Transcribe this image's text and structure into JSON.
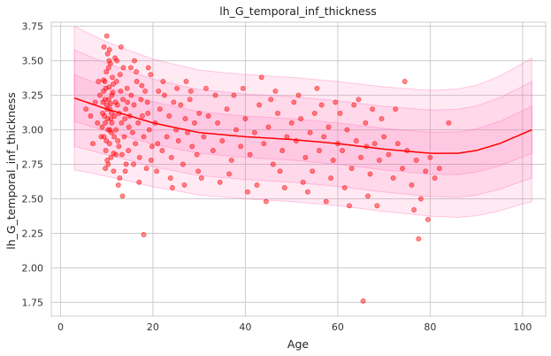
{
  "chart_data": {
    "type": "scatter",
    "title": "lh_G_temporal_inf_thickness",
    "xlabel": "Age",
    "ylabel": "lh_G_temporal_inf_thickness",
    "xlim": [
      -2,
      105
    ],
    "ylim": [
      1.65,
      3.78
    ],
    "x_ticks": [
      0,
      20,
      40,
      60,
      80,
      100
    ],
    "y_ticks": [
      1.75,
      2.0,
      2.25,
      2.5,
      2.75,
      3.0,
      3.25,
      3.5,
      3.75
    ],
    "x_tick_labels": [
      "0",
      "20",
      "40",
      "60",
      "80",
      "100"
    ],
    "y_tick_labels": [
      "1.75",
      "2.00",
      "2.25",
      "2.50",
      "2.75",
      "3.00",
      "3.25",
      "3.50",
      "3.75"
    ],
    "grid": true,
    "point_color": "#ff0000",
    "trend_color": "#ff0000",
    "band_color": "#ff69b4",
    "trend": {
      "x": [
        3,
        10,
        20,
        30,
        40,
        50,
        60,
        70,
        80,
        86,
        90,
        95,
        102
      ],
      "y": [
        3.23,
        3.15,
        3.05,
        2.98,
        2.95,
        2.93,
        2.9,
        2.86,
        2.83,
        2.83,
        2.85,
        2.9,
        3.0
      ]
    },
    "bands": [
      {
        "name": "",
        "upper_offset": 0.45,
        "lower_offset": 0.45,
        "edge_widen": 0.07
      },
      {
        "name": "",
        "upper_offset": 0.31,
        "lower_offset": 0.31,
        "edge_widen": 0.04
      },
      {
        "name": "",
        "upper_offset": 0.15,
        "lower_offset": 0.15,
        "edge_widen": 0.02
      }
    ],
    "points": [
      [
        9.1,
        3.12
      ],
      [
        9.3,
        3.28
      ],
      [
        9.4,
        2.95
      ],
      [
        9.6,
        3.35
      ],
      [
        9.7,
        3.05
      ],
      [
        9.8,
        2.85
      ],
      [
        9.9,
        3.42
      ],
      [
        10.0,
        3.18
      ],
      [
        10.1,
        2.78
      ],
      [
        10.2,
        3.55
      ],
      [
        10.3,
        3.0
      ],
      [
        10.4,
        3.22
      ],
      [
        10.5,
        3.31
      ],
      [
        10.6,
        2.9
      ],
      [
        10.7,
        3.15
      ],
      [
        10.8,
        3.48
      ],
      [
        10.9,
        3.08
      ],
      [
        11.0,
        2.98
      ],
      [
        11.1,
        3.25
      ],
      [
        11.2,
        3.38
      ],
      [
        9.2,
        3.2
      ],
      [
        9.5,
        3.1
      ],
      [
        9.8,
        3.3
      ],
      [
        10.1,
        3.15
      ],
      [
        10.4,
        3.45
      ],
      [
        10.7,
        3.0
      ],
      [
        11.0,
        3.12
      ],
      [
        11.3,
        3.27
      ],
      [
        11.6,
        2.95
      ],
      [
        11.9,
        3.2
      ],
      [
        9.0,
        3.02
      ],
      [
        9.3,
        3.36
      ],
      [
        9.6,
        3.22
      ],
      [
        9.9,
        2.92
      ],
      [
        10.2,
        3.08
      ],
      [
        10.5,
        3.5
      ],
      [
        10.8,
        3.19
      ],
      [
        11.1,
        3.05
      ],
      [
        11.4,
        3.33
      ],
      [
        11.7,
        3.1
      ],
      [
        9.4,
        3.6
      ],
      [
        10.0,
        3.68
      ],
      [
        10.6,
        3.58
      ],
      [
        9.7,
        2.72
      ],
      [
        10.3,
        2.75
      ],
      [
        10.9,
        2.8
      ],
      [
        11.5,
        2.83
      ],
      [
        12.0,
        3.0
      ],
      [
        12.3,
        3.18
      ],
      [
        12.6,
        2.88
      ],
      [
        12.9,
        3.4
      ],
      [
        13.2,
        3.05
      ],
      [
        13.5,
        3.22
      ],
      [
        13.8,
        2.95
      ],
      [
        14.1,
        3.15
      ],
      [
        14.4,
        3.3
      ],
      [
        14.7,
        2.85
      ],
      [
        15.0,
        3.1
      ],
      [
        15.3,
        3.25
      ],
      [
        15.6,
        2.98
      ],
      [
        12.1,
        3.35
      ],
      [
        12.4,
        2.92
      ],
      [
        12.7,
        3.12
      ],
      [
        13.0,
        3.28
      ],
      [
        13.3,
        2.82
      ],
      [
        13.6,
        3.45
      ],
      [
        13.9,
        3.08
      ],
      [
        14.2,
        2.75
      ],
      [
        14.5,
        3.2
      ],
      [
        14.8,
        3.02
      ],
      [
        12.2,
        3.5
      ],
      [
        12.8,
        2.65
      ],
      [
        13.4,
        2.52
      ],
      [
        12.5,
        2.6
      ],
      [
        15.9,
        3.18
      ],
      [
        16.2,
        2.9
      ],
      [
        16.5,
        3.35
      ],
      [
        16.8,
        3.05
      ],
      [
        17.1,
        2.8
      ],
      [
        17.4,
        3.22
      ],
      [
        17.7,
        3.1
      ],
      [
        18.0,
        2.95
      ],
      [
        18.3,
        3.28
      ],
      [
        18.6,
        2.72
      ],
      [
        18.9,
        3.12
      ],
      [
        19.2,
        3.0
      ],
      [
        19.5,
        3.4
      ],
      [
        19.8,
        2.88
      ],
      [
        16.0,
        3.5
      ],
      [
        17.0,
        2.62
      ],
      [
        18.0,
        2.24
      ],
      [
        16.4,
        3.42
      ],
      [
        17.6,
        3.32
      ],
      [
        18.8,
        3.2
      ],
      [
        19.6,
        2.78
      ],
      [
        20.5,
        3.05
      ],
      [
        21.0,
        2.9
      ],
      [
        21.5,
        3.15
      ],
      [
        22.0,
        2.85
      ],
      [
        22.5,
        3.25
      ],
      [
        23.0,
        2.95
      ],
      [
        23.5,
        3.1
      ],
      [
        24.0,
        2.8
      ],
      [
        24.5,
        3.2
      ],
      [
        25.0,
        3.0
      ],
      [
        25.5,
        2.92
      ],
      [
        26.0,
        3.18
      ],
      [
        26.5,
        2.75
      ],
      [
        27.0,
        3.08
      ],
      [
        27.5,
        2.98
      ],
      [
        28.0,
        3.22
      ],
      [
        28.5,
        2.88
      ],
      [
        29.0,
        3.05
      ],
      [
        29.5,
        2.82
      ],
      [
        30.0,
        3.12
      ],
      [
        20.8,
        2.7
      ],
      [
        22.2,
        3.35
      ],
      [
        23.8,
        2.65
      ],
      [
        25.2,
        3.3
      ],
      [
        26.8,
        2.6
      ],
      [
        28.2,
        3.28
      ],
      [
        29.8,
        2.7
      ],
      [
        31.0,
        2.95
      ],
      [
        32.0,
        3.1
      ],
      [
        33.0,
        2.85
      ],
      [
        34.0,
        3.05
      ],
      [
        35.0,
        2.92
      ],
      [
        36.0,
        3.15
      ],
      [
        37.0,
        2.78
      ],
      [
        38.0,
        3.0
      ],
      [
        39.0,
        2.88
      ],
      [
        40.0,
        3.08
      ],
      [
        41.0,
        2.82
      ],
      [
        42.0,
        2.98
      ],
      [
        43.0,
        3.18
      ],
      [
        44.0,
        2.9
      ],
      [
        45.0,
        3.02
      ],
      [
        46.0,
        2.75
      ],
      [
        47.0,
        3.12
      ],
      [
        48.0,
        2.85
      ],
      [
        49.0,
        2.95
      ],
      [
        50.0,
        3.05
      ],
      [
        31.5,
        3.3
      ],
      [
        34.5,
        2.62
      ],
      [
        37.5,
        3.25
      ],
      [
        40.5,
        2.55
      ],
      [
        43.5,
        3.38
      ],
      [
        44.5,
        2.48
      ],
      [
        46.5,
        3.28
      ],
      [
        48.5,
        2.58
      ],
      [
        51.0,
        2.92
      ],
      [
        52.0,
        3.08
      ],
      [
        53.0,
        2.8
      ],
      [
        54.0,
        2.98
      ],
      [
        55.0,
        3.12
      ],
      [
        56.0,
        2.85
      ],
      [
        57.0,
        2.95
      ],
      [
        58.0,
        3.02
      ],
      [
        59.0,
        2.78
      ],
      [
        60.0,
        2.9
      ],
      [
        51.5,
        3.25
      ],
      [
        53.5,
        2.55
      ],
      [
        55.5,
        3.3
      ],
      [
        57.5,
        2.48
      ],
      [
        59.5,
        3.2
      ],
      [
        61.0,
        2.85
      ],
      [
        62.0,
        3.0
      ],
      [
        63.0,
        2.72
      ],
      [
        64.0,
        2.92
      ],
      [
        65.0,
        2.8
      ],
      [
        66.0,
        3.05
      ],
      [
        67.0,
        2.68
      ],
      [
        68.0,
        2.9
      ],
      [
        69.0,
        2.78
      ],
      [
        70.0,
        2.95
      ],
      [
        61.5,
        2.58
      ],
      [
        63.5,
        3.18
      ],
      [
        65.5,
        1.76
      ],
      [
        66.5,
        2.52
      ],
      [
        67.5,
        3.15
      ],
      [
        68.5,
        2.45
      ],
      [
        69.5,
        3.08
      ],
      [
        71.0,
        2.82
      ],
      [
        72.0,
        2.65
      ],
      [
        73.0,
        2.9
      ],
      [
        74.0,
        2.72
      ],
      [
        75.0,
        2.85
      ],
      [
        76.0,
        2.6
      ],
      [
        77.0,
        2.78
      ],
      [
        78.0,
        2.5
      ],
      [
        79.0,
        2.7
      ],
      [
        80.0,
        2.8
      ],
      [
        72.5,
        3.15
      ],
      [
        74.5,
        3.35
      ],
      [
        76.5,
        2.42
      ],
      [
        77.5,
        2.21
      ],
      [
        79.5,
        2.35
      ],
      [
        81.0,
        2.65
      ],
      [
        82.0,
        2.72
      ],
      [
        84.0,
        3.05
      ],
      [
        58.5,
        2.65
      ],
      [
        60.5,
        3.12
      ],
      [
        62.5,
        2.45
      ],
      [
        64.5,
        3.22
      ],
      [
        66.2,
        2.88
      ],
      [
        56.5,
        3.18
      ],
      [
        54.5,
        2.7
      ],
      [
        52.5,
        2.62
      ],
      [
        50.5,
        3.2
      ],
      [
        47.5,
        2.7
      ],
      [
        45.5,
        3.22
      ],
      [
        42.5,
        2.6
      ],
      [
        39.5,
        3.3
      ],
      [
        36.5,
        2.68
      ],
      [
        33.5,
        3.25
      ],
      [
        30.5,
        2.65
      ],
      [
        27.2,
        3.35
      ],
      [
        24.2,
        2.58
      ],
      [
        21.2,
        3.28
      ],
      [
        19.0,
        3.45
      ],
      [
        13.1,
        3.6
      ],
      [
        14.0,
        2.7
      ],
      [
        15.2,
        3.45
      ],
      [
        15.8,
        2.75
      ],
      [
        11.8,
        3.52
      ],
      [
        11.5,
        2.7
      ],
      [
        12.0,
        2.82
      ],
      [
        8.5,
        3.25
      ],
      [
        8.0,
        3.05
      ],
      [
        7.5,
        3.2
      ],
      [
        6.5,
        3.1
      ],
      [
        5.5,
        3.15
      ],
      [
        7.0,
        2.9
      ],
      [
        8.2,
        3.35
      ],
      [
        8.8,
        2.95
      ]
    ]
  }
}
